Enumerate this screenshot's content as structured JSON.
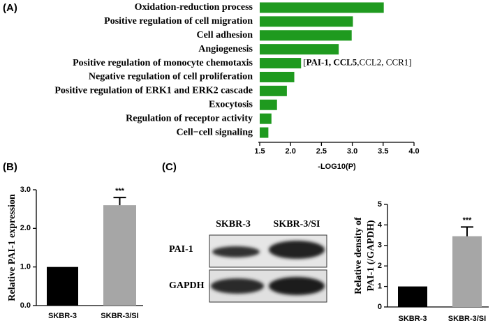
{
  "chart_data": [
    {
      "type": "barh",
      "panel_label": "(A)",
      "categories": [
        "Oxidation-reduction process",
        "Positive regulation of cell migration",
        "Cell adhesion",
        "Angiogenesis",
        "Positive regulation of monocyte chemotaxis",
        "Negative regulation of cell proliferation",
        "Positive regulation of ERK1 and ERK2 cascade",
        "Exocytosis",
        "Regulation of receptor activity",
        "Cell−cell signaling"
      ],
      "values": [
        3.51,
        3.01,
        2.99,
        2.78,
        2.17,
        2.06,
        1.94,
        1.78,
        1.69,
        1.64
      ],
      "color": "#1f9a1f",
      "xlim": [
        1.5,
        4.0
      ],
      "xticks": [
        1.5,
        {
          "value": 2,
          "label": "2.0"
        },
        2.5,
        {
          "value": 3,
          "label": "3.0"
        },
        3.5,
        {
          "value": 4,
          "label": "4.0"
        }
      ],
      "xlabel": "-LOG10(P)",
      "annotation": [
        {
          "text": "[",
          "bold": false
        },
        {
          "text": "PAI-1, CCL5",
          "bold": true
        },
        {
          "text": ",CCL2, CCR1]",
          "bold": false
        }
      ]
    },
    {
      "type": "bar",
      "panel_label": "(B)",
      "categories": [
        "SKBR-3",
        "SKBR-3/SI"
      ],
      "values": [
        1.0,
        2.6
      ],
      "errors": [
        0,
        0.2
      ],
      "colors": [
        "#000000",
        "#a6a6a6"
      ],
      "significance": [
        null,
        "***"
      ],
      "ylim": [
        0,
        3.0
      ],
      "yticks": [
        {
          "value": 0,
          "label": "0.0"
        },
        {
          "value": 1,
          "label": "1.0"
        },
        {
          "value": 2,
          "label": "2.0"
        },
        {
          "value": 3,
          "label": "3.0"
        }
      ],
      "ylabel": [
        "Relative PAI-1 expression"
      ]
    },
    {
      "type": "bar",
      "panel_label": "(C)",
      "categories": [
        "SKBR-3",
        "SKBR-3/SI"
      ],
      "values": [
        1.0,
        3.45
      ],
      "errors": [
        0,
        0.45
      ],
      "colors": [
        "#000000",
        "#a6a6a6"
      ],
      "significance": [
        null,
        "***"
      ],
      "ylim": [
        0,
        5
      ],
      "yticks": [
        0,
        1,
        2,
        3,
        4,
        5
      ],
      "ylabel": [
        "Relative density of",
        "PAI-1 (/GAPDH)"
      ],
      "blot": {
        "lanes": [
          "SKBR-3",
          "SKBR-3/SI"
        ],
        "rows": [
          "PAI-1",
          "GAPDH"
        ]
      }
    }
  ]
}
